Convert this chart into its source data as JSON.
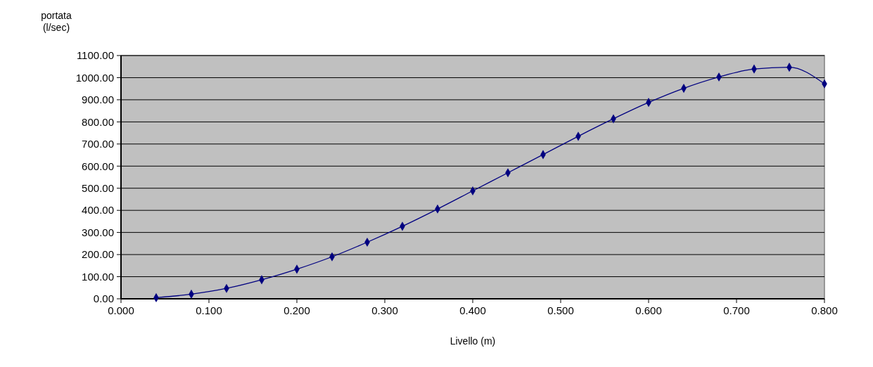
{
  "chart_data": {
    "type": "line",
    "xlabel": "Livello (m)",
    "ylabel": "portata\n(l/sec)",
    "x": [
      0.04,
      0.08,
      0.12,
      0.16,
      0.2,
      0.24,
      0.28,
      0.32,
      0.36,
      0.4,
      0.44,
      0.48,
      0.52,
      0.56,
      0.6,
      0.64,
      0.68,
      0.72,
      0.76,
      0.8
    ],
    "series": [
      {
        "color": "#000080",
        "values": [
          5,
          21,
          47,
          86,
          134,
          190,
          256,
          328,
          406,
          488,
          570,
          652,
          735,
          814,
          888,
          952,
          1003,
          1039,
          1047,
          972
        ]
      }
    ],
    "xlim": [
      0,
      0.8
    ],
    "xticks": [
      {
        "value": 0,
        "label": "0.000"
      },
      {
        "value": 0.1,
        "label": "0.100"
      },
      {
        "value": 0.2,
        "label": "0.200"
      },
      {
        "value": 0.3,
        "label": "0.300"
      },
      {
        "value": 0.4,
        "label": "0.400"
      },
      {
        "value": 0.5,
        "label": "0.500"
      },
      {
        "value": 0.6,
        "label": "0.600"
      },
      {
        "value": 0.7,
        "label": "0.700"
      },
      {
        "value": 0.8,
        "label": "0.800"
      }
    ],
    "ylim": [
      0,
      1100
    ],
    "yticks": [
      {
        "value": 0,
        "label": "0.00"
      },
      {
        "value": 100,
        "label": "100.00"
      },
      {
        "value": 200,
        "label": "200.00"
      },
      {
        "value": 300,
        "label": "300.00"
      },
      {
        "value": 400,
        "label": "400.00"
      },
      {
        "value": 500,
        "label": "500.00"
      },
      {
        "value": 600,
        "label": "600.00"
      },
      {
        "value": 700,
        "label": "700.00"
      },
      {
        "value": 800,
        "label": "800.00"
      },
      {
        "value": 900,
        "label": "900.00"
      },
      {
        "value": 1000,
        "label": "1000.00"
      },
      {
        "value": 1100,
        "label": "1100.00"
      }
    ],
    "grid": "y",
    "marker": "diamond",
    "line_style": "solid"
  }
}
